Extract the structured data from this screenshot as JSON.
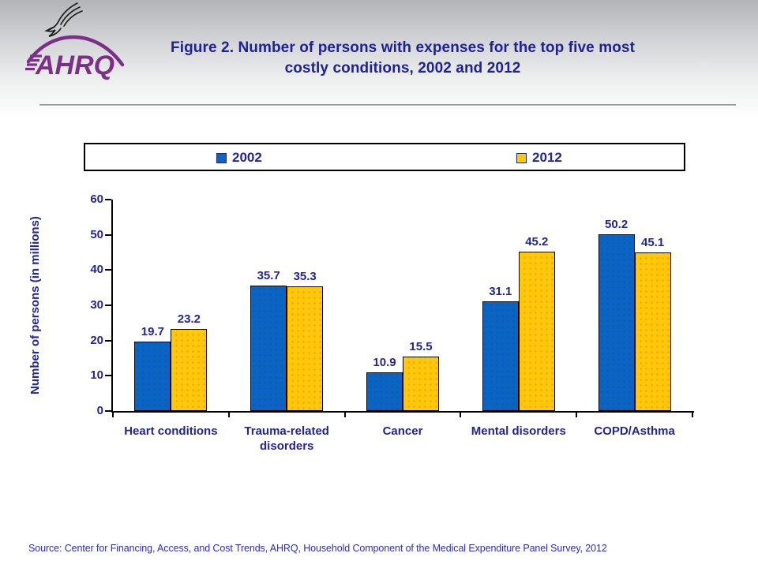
{
  "header": {
    "title_line1": "Figure 2. Number of persons with expenses for the top five most",
    "title_line2": "costly conditions, 2002 and 2012",
    "logo_text": "AHRQ"
  },
  "chart_data": {
    "type": "bar",
    "title": "Figure 2. Number of persons with expenses for the top five most costly conditions, 2002 and 2012",
    "categories": [
      "Heart conditions",
      "Trauma-related disorders",
      "Cancer",
      "Mental disorders",
      "COPD/Asthma"
    ],
    "series": [
      {
        "name": "2002",
        "color": "#0b63c6",
        "values": [
          19.7,
          35.7,
          10.9,
          31.1,
          50.2
        ]
      },
      {
        "name": "2012",
        "color": "#ffc80a",
        "values": [
          23.2,
          35.3,
          15.5,
          45.2,
          45.1
        ]
      }
    ],
    "ylabel": "Number of persons (in millions)",
    "ylim": [
      0,
      60
    ],
    "ytick_step": 10,
    "grid": false,
    "legend_position": "top",
    "value_labels": true
  },
  "colors": {
    "series_2002": "#0b63c6",
    "series_2012": "#ffc80a",
    "text_navy": "#232596",
    "logo_purple": "#7b2f88",
    "source_blue": "#2c2cc0"
  },
  "source": "Source: Center for Financing, Access, and Cost Trends, AHRQ, Household Component of the Medical Expenditure Panel Survey, 2012"
}
